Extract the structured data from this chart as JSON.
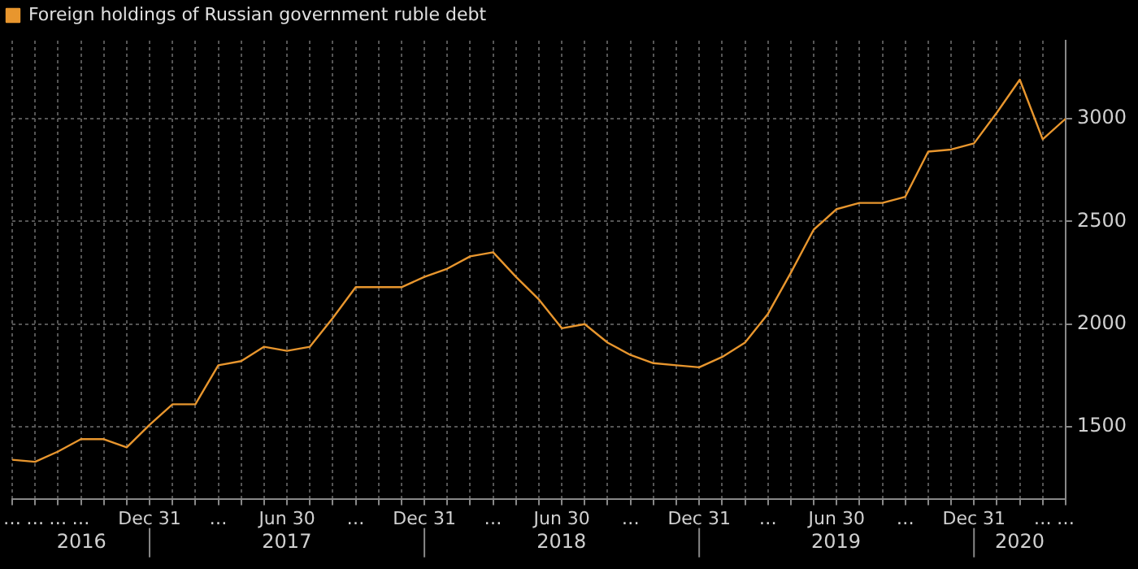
{
  "chart_data": {
    "type": "line",
    "x": [
      "2016-06-30",
      "2016-07-31",
      "2016-08-31",
      "2016-09-30",
      "2016-10-31",
      "2016-11-30",
      "2016-12-31",
      "2017-01-31",
      "2017-02-28",
      "2017-03-31",
      "2017-04-30",
      "2017-05-31",
      "2017-06-30",
      "2017-07-31",
      "2017-08-31",
      "2017-09-30",
      "2017-10-31",
      "2017-11-30",
      "2017-12-31",
      "2018-01-31",
      "2018-02-28",
      "2018-03-31",
      "2018-04-30",
      "2018-05-31",
      "2018-06-30",
      "2018-07-31",
      "2018-08-31",
      "2018-09-30",
      "2018-10-31",
      "2018-11-30",
      "2018-12-31",
      "2019-01-31",
      "2019-02-28",
      "2019-03-31",
      "2019-04-30",
      "2019-05-31",
      "2019-06-30",
      "2019-07-31",
      "2019-08-31",
      "2019-09-30",
      "2019-10-31",
      "2019-11-30",
      "2019-12-31",
      "2020-01-31",
      "2020-02-29",
      "2020-03-31",
      "2020-04-30"
    ],
    "series": [
      {
        "name": "Foreign holdings of Russian government ruble debt",
        "color": "#e8962e",
        "values": [
          1340,
          1330,
          1380,
          1440,
          1440,
          1400,
          1510,
          1610,
          1610,
          1800,
          1820,
          1890,
          1870,
          1890,
          2030,
          2180,
          2180,
          2180,
          2230,
          2270,
          2330,
          2350,
          2230,
          2120,
          1980,
          2000,
          1910,
          1850,
          1810,
          1800,
          1790,
          1840,
          1910,
          2050,
          2250,
          2460,
          2560,
          2590,
          2590,
          2620,
          2840,
          2850,
          2880,
          3030,
          3190,
          2900,
          3000
        ]
      }
    ],
    "ylim": [
      1150,
      3380
    ],
    "yticks": [
      1500,
      2000,
      2500,
      3000
    ],
    "xticks": [
      {
        "value": "2016-06-30",
        "label": "…"
      },
      {
        "value": "2016-07-31",
        "label": "…"
      },
      {
        "value": "2016-08-31",
        "label": "…"
      },
      {
        "value": "2016-09-30",
        "label": "…"
      },
      {
        "value": "2016-10-31",
        "label": null
      },
      {
        "value": "2016-11-30",
        "label": null
      },
      {
        "value": "2016-12-31",
        "label": "Dec 31"
      },
      {
        "value": "2017-01-31",
        "label": null
      },
      {
        "value": "2017-02-28",
        "label": null
      },
      {
        "value": "2017-03-31",
        "label": "…"
      },
      {
        "value": "2017-04-30",
        "label": null
      },
      {
        "value": "2017-05-31",
        "label": null
      },
      {
        "value": "2017-06-30",
        "label": "Jun 30"
      },
      {
        "value": "2017-07-31",
        "label": null
      },
      {
        "value": "2017-08-31",
        "label": null
      },
      {
        "value": "2017-09-30",
        "label": "…"
      },
      {
        "value": "2017-10-31",
        "label": null
      },
      {
        "value": "2017-11-30",
        "label": null
      },
      {
        "value": "2017-12-31",
        "label": "Dec 31"
      },
      {
        "value": "2018-01-31",
        "label": null
      },
      {
        "value": "2018-02-28",
        "label": null
      },
      {
        "value": "2018-03-31",
        "label": "…"
      },
      {
        "value": "2018-04-30",
        "label": null
      },
      {
        "value": "2018-05-31",
        "label": null
      },
      {
        "value": "2018-06-30",
        "label": "Jun 30"
      },
      {
        "value": "2018-07-31",
        "label": null
      },
      {
        "value": "2018-08-31",
        "label": null
      },
      {
        "value": "2018-09-30",
        "label": "…"
      },
      {
        "value": "2018-10-31",
        "label": null
      },
      {
        "value": "2018-11-30",
        "label": null
      },
      {
        "value": "2018-12-31",
        "label": "Dec 31"
      },
      {
        "value": "2019-01-31",
        "label": null
      },
      {
        "value": "2019-02-28",
        "label": null
      },
      {
        "value": "2019-03-31",
        "label": "…"
      },
      {
        "value": "2019-04-30",
        "label": null
      },
      {
        "value": "2019-05-31",
        "label": null
      },
      {
        "value": "2019-06-30",
        "label": "Jun 30"
      },
      {
        "value": "2019-07-31",
        "label": null
      },
      {
        "value": "2019-08-31",
        "label": null
      },
      {
        "value": "2019-09-30",
        "label": "…"
      },
      {
        "value": "2019-10-31",
        "label": null
      },
      {
        "value": "2019-11-30",
        "label": null
      },
      {
        "value": "2019-12-31",
        "label": "Dec 31"
      },
      {
        "value": "2020-01-31",
        "label": null
      },
      {
        "value": "2020-02-29",
        "label": null
      },
      {
        "value": "2020-03-31",
        "label": "…"
      },
      {
        "value": "2020-04-30",
        "label": "…"
      }
    ],
    "xlim": [
      "2016-06-30",
      "2020-04-30"
    ],
    "x2lim": [
      "2016-06-30",
      "2020-04-30"
    ],
    "x2ticks": [
      {
        "value": "2016-09-30",
        "label": "2016"
      },
      {
        "value": "2017-06-30",
        "label": "2017"
      },
      {
        "value": "2018-06-30",
        "label": "2018"
      },
      {
        "value": "2019-06-30",
        "label": "2019"
      },
      {
        "value": "2020-02-29",
        "label": "2020"
      }
    ],
    "grid": true,
    "legend": "top left",
    "marker": "none",
    "line_style": "solid"
  }
}
